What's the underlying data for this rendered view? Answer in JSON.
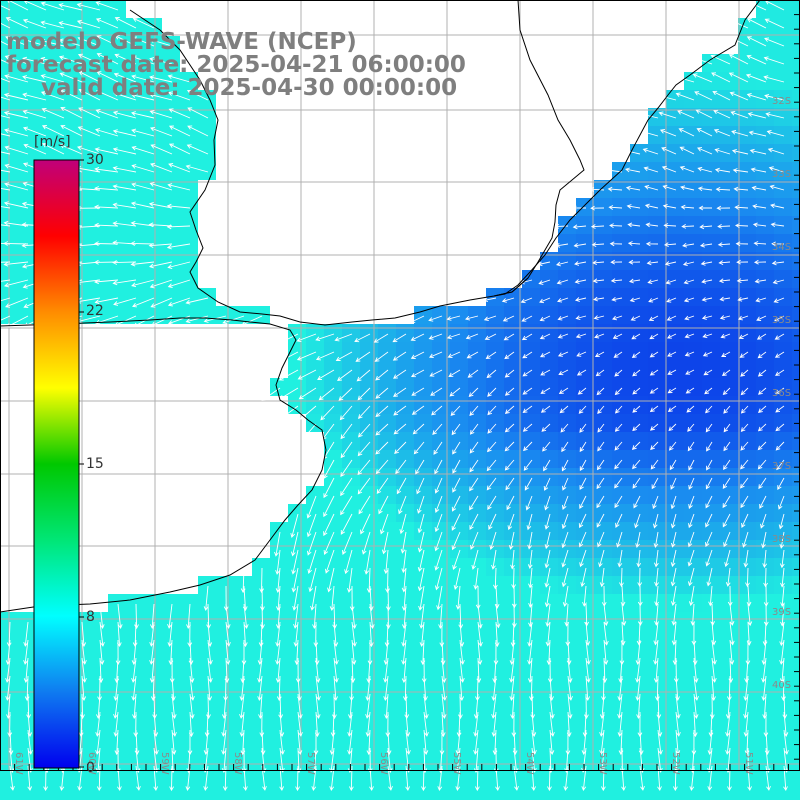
{
  "title": {
    "model": "modelo GEFS-WAVE (NCEP)",
    "forecast": "forecast date: 2025-04-21 06:00:00",
    "valid": "valid date: 2025-04-30 00:00:00"
  },
  "colorbar": {
    "unit": "[m/s]",
    "ticks": [
      "30",
      "22",
      "15",
      "8",
      "0"
    ],
    "range": [
      0,
      30
    ],
    "colors": [
      "#0000ee",
      "#0f7bf0",
      "#00ffff",
      "#00e676",
      "#00c800",
      "#ffff00",
      "#ff8c00",
      "#ff0000",
      "#c0007a"
    ]
  },
  "map": {
    "lat_labels": [
      "32S",
      "33S",
      "34S",
      "35S",
      "36S",
      "37S",
      "38S",
      "39S",
      "40S"
    ],
    "lon_labels": [
      "61W",
      "60W",
      "59W",
      "58W",
      "57W",
      "56W",
      "55W",
      "54W",
      "53W",
      "52W",
      "51W"
    ],
    "ocean_colors": {
      "weak": "#0a35e8",
      "mid": "#1a8cf0",
      "strong": "#20f0e0"
    },
    "land_color": "#ffffff",
    "grid_color": "#b0b0b0",
    "label_color": "#8a8a8a",
    "arrow_color": "#ffffff"
  }
}
